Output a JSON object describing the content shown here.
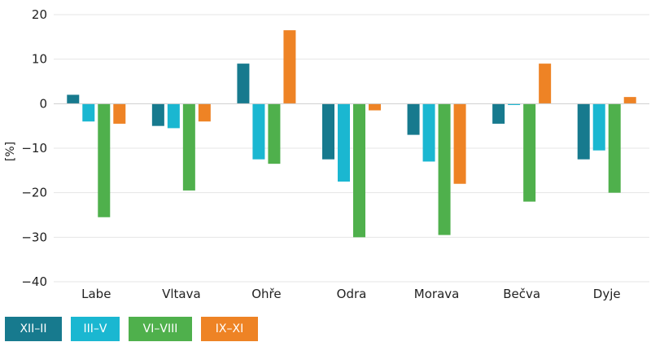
{
  "chart_data": {
    "type": "bar",
    "categories": [
      "Labe",
      "Vltava",
      "Ohře",
      "Odra",
      "Morava",
      "Bečva",
      "Dyje"
    ],
    "series": [
      {
        "name": "XII–II",
        "color": "#177a8e",
        "values": [
          2,
          -5,
          9,
          -12.5,
          -7,
          -4.5,
          -12.5
        ]
      },
      {
        "name": "III–V",
        "color": "#1ab7d1",
        "values": [
          -4,
          -5.5,
          -12.5,
          -17.5,
          -13,
          -0.3,
          -10.5
        ]
      },
      {
        "name": "VI–VIII",
        "color": "#4fb04c",
        "values": [
          -25.5,
          -19.5,
          -13.5,
          -30,
          -29.5,
          -22,
          -20
        ]
      },
      {
        "name": "IX–XI",
        "color": "#ee8325",
        "values": [
          -4.5,
          -4,
          16.5,
          -1.5,
          -18,
          9,
          1.5
        ]
      }
    ],
    "title": "",
    "xlabel": "",
    "ylabel": "[%]",
    "ylim": [
      -40,
      20
    ],
    "yticks": [
      20,
      10,
      0,
      -10,
      -20,
      -30,
      -40
    ],
    "ytick_labels": [
      "20",
      "10",
      "0",
      "−10",
      "−20",
      "−30",
      "−40"
    ],
    "grid": true,
    "legend_position": "bottom-left"
  }
}
